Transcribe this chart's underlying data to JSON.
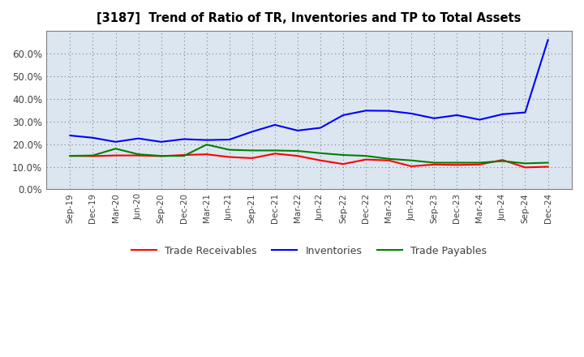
{
  "title": "[3187]  Trend of Ratio of TR, Inventories and TP to Total Assets",
  "x_labels": [
    "Sep-19",
    "Dec-19",
    "Mar-20",
    "Jun-20",
    "Sep-20",
    "Dec-20",
    "Mar-21",
    "Jun-21",
    "Sep-21",
    "Dec-21",
    "Mar-22",
    "Jun-22",
    "Sep-22",
    "Dec-22",
    "Mar-23",
    "Jun-23",
    "Sep-23",
    "Dec-23",
    "Mar-24",
    "Jun-24",
    "Sep-24",
    "Dec-24"
  ],
  "trade_receivables": [
    0.148,
    0.147,
    0.15,
    0.15,
    0.147,
    0.152,
    0.155,
    0.143,
    0.138,
    0.158,
    0.148,
    0.128,
    0.112,
    0.132,
    0.128,
    0.102,
    0.11,
    0.108,
    0.11,
    0.13,
    0.097,
    0.1
  ],
  "inventories": [
    0.238,
    0.228,
    0.21,
    0.225,
    0.21,
    0.222,
    0.218,
    0.22,
    0.255,
    0.285,
    0.26,
    0.272,
    0.328,
    0.348,
    0.347,
    0.335,
    0.314,
    0.328,
    0.308,
    0.332,
    0.34,
    0.66
  ],
  "trade_payables": [
    0.148,
    0.15,
    0.18,
    0.155,
    0.148,
    0.148,
    0.198,
    0.175,
    0.172,
    0.172,
    0.17,
    0.16,
    0.152,
    0.148,
    0.135,
    0.128,
    0.118,
    0.118,
    0.118,
    0.125,
    0.115,
    0.118
  ],
  "tr_color": "#ff0000",
  "inv_color": "#0000ff",
  "tp_color": "#008000",
  "ylim": [
    0.0,
    0.7
  ],
  "yticks": [
    0.0,
    0.1,
    0.2,
    0.3,
    0.4,
    0.5,
    0.6
  ],
  "legend_labels": [
    "Trade Receivables",
    "Inventories",
    "Trade Payables"
  ],
  "background_color": "#ffffff",
  "plot_bg_color": "#dce6f1"
}
